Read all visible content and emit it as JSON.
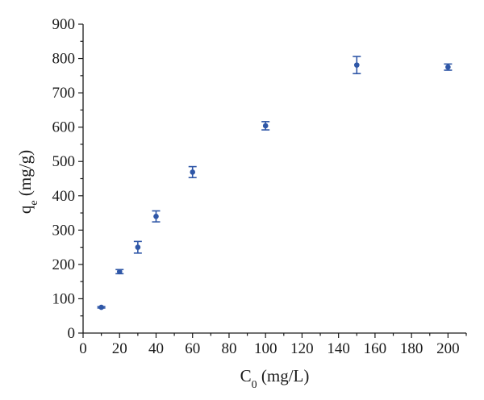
{
  "chart_data": {
    "type": "scatter",
    "title": "",
    "xlabel": {
      "main": "C",
      "sub": "0",
      "unit": " (mg/L)"
    },
    "ylabel": {
      "main": "q",
      "sub": "e",
      "unit": " (mg/g)"
    },
    "xlim": [
      0,
      210
    ],
    "ylim": [
      0,
      900
    ],
    "xticks": [
      0,
      20,
      40,
      60,
      80,
      100,
      120,
      140,
      160,
      180,
      200
    ],
    "yticks": [
      0,
      100,
      200,
      300,
      400,
      500,
      600,
      700,
      800,
      900
    ],
    "grid": false,
    "legend": "none",
    "colors": {
      "series": "#2f57a7",
      "axis": "#1a1a1a"
    },
    "series": [
      {
        "x": [
          10,
          20,
          30,
          40,
          60,
          100,
          150,
          200
        ],
        "y": [
          75,
          179,
          250,
          340,
          469,
          604,
          781,
          775
        ],
        "err": [
          2,
          6,
          17,
          16,
          16,
          12,
          25,
          9
        ]
      }
    ]
  }
}
